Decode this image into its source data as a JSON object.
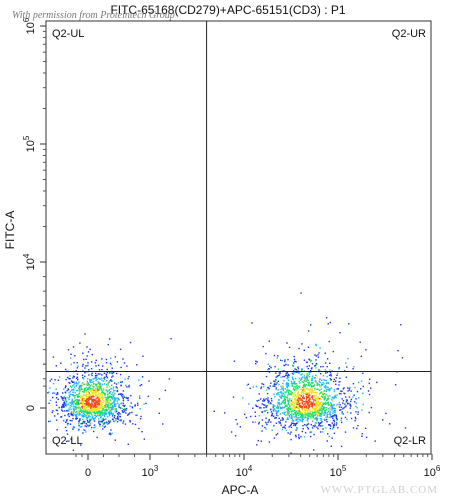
{
  "chart_data": {
    "type": "scatter",
    "title": "FITC-65168(CD279)+APC-65151(CD3) : P1",
    "xlabel": "APC-A",
    "ylabel": "FITC-A",
    "x_scale": "biexponential",
    "y_scale": "biexponential",
    "x_ticks": [
      {
        "value": 0,
        "label": "0"
      },
      {
        "value": 1000,
        "label": "10^3"
      },
      {
        "value": 10000,
        "label": "10^4"
      },
      {
        "value": 100000,
        "label": "10^5"
      },
      {
        "value": 1000000,
        "label": "10^6"
      }
    ],
    "y_ticks": [
      {
        "value": 0,
        "label": "0"
      },
      {
        "value": 10000,
        "label": "10^4"
      },
      {
        "value": 100000,
        "label": "10^5"
      },
      {
        "value": 1000000,
        "label": "10^6"
      }
    ],
    "gate": {
      "x": 4000,
      "y": 2500
    },
    "quadrants": [
      "Q2-UL",
      "Q2-UR",
      "Q2-LL",
      "Q2-LR"
    ],
    "populations": [
      {
        "quadrant": "Q2-LL",
        "x_center": 0,
        "y_center": 0,
        "relative_size": 1.0
      },
      {
        "quadrant": "Q2-LR",
        "x_center": 45000,
        "y_center": 0,
        "relative_size": 1.1
      }
    ],
    "density_colors": [
      "#1a35e8",
      "#19b7f5",
      "#12e06e",
      "#e9e327",
      "#f04b1c"
    ],
    "grid": false,
    "legend": "none"
  },
  "watermark_top": "With permission from Proteintech Group",
  "watermark_bottom": "WWW.PTGLAB.COM"
}
